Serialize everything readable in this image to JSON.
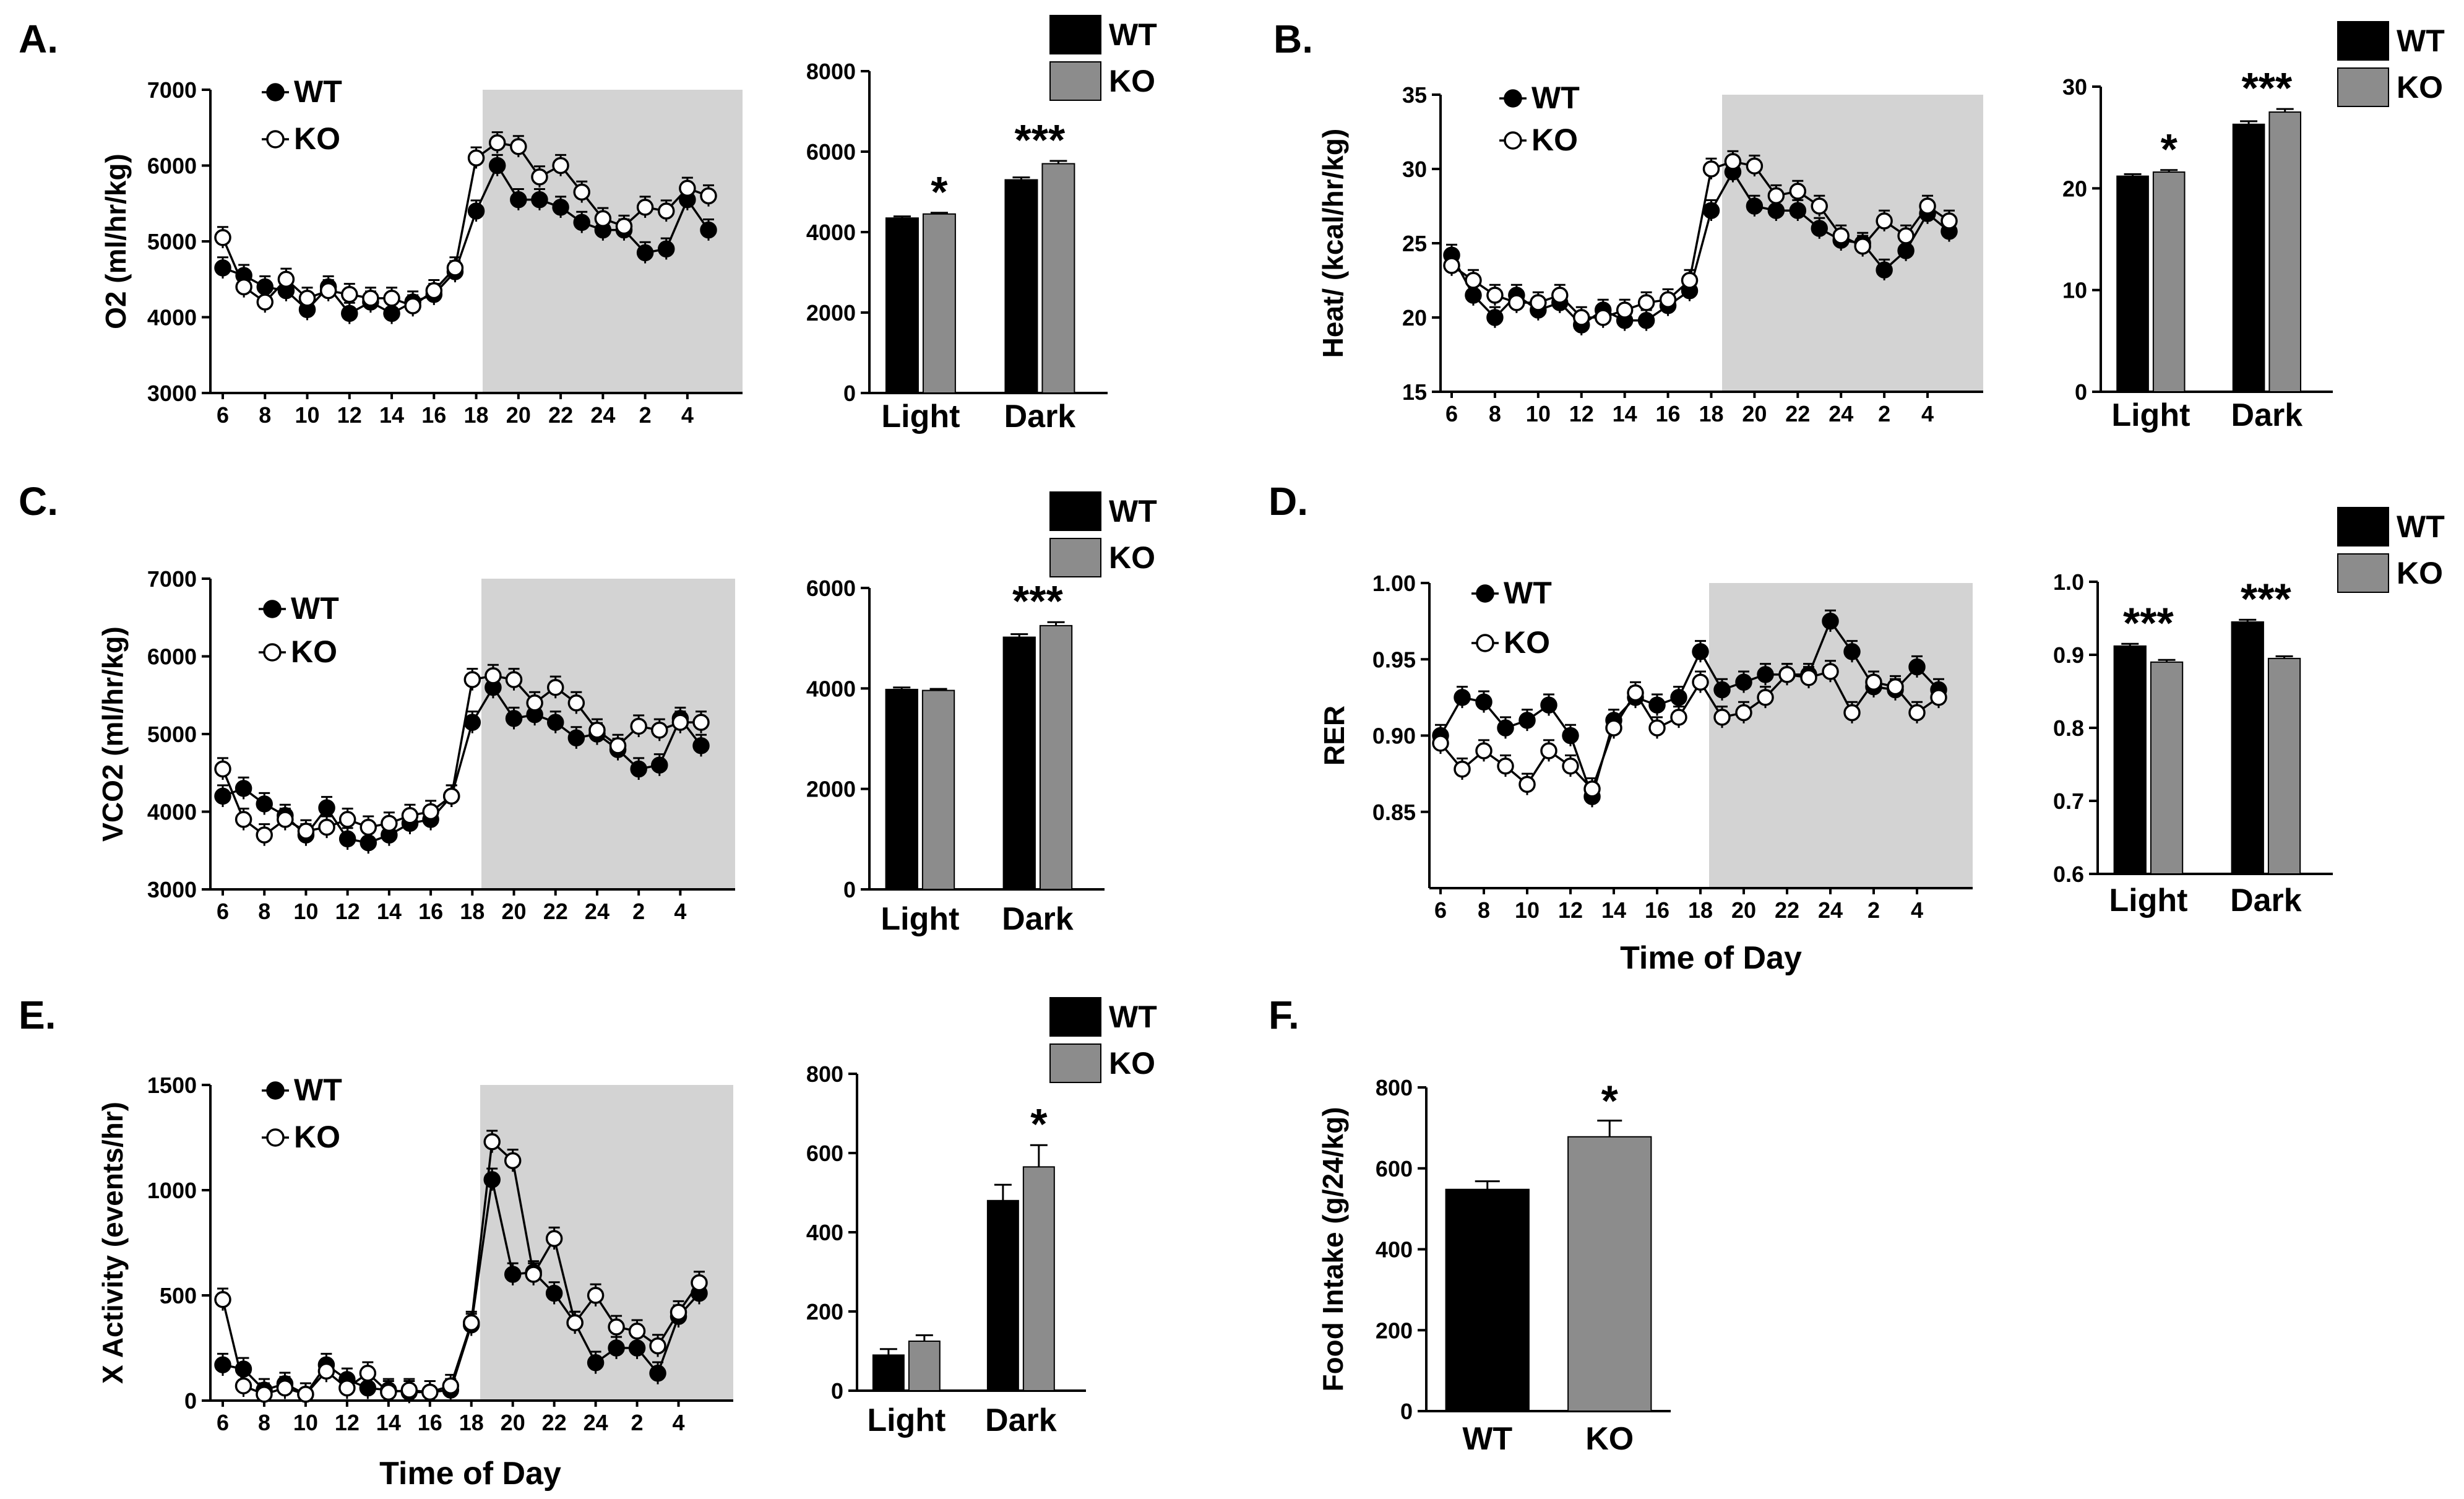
{
  "figure": {
    "fill_wt": "#000000",
    "fill_ko": "#8c8c8c",
    "shade": "#d3d3d3"
  },
  "chart_data": [
    {
      "id": "A-line",
      "panel": "A.",
      "type": "line",
      "ylabel": "O2 (ml/hr/kg)",
      "xlabel": "",
      "ylim": [
        3000,
        7000
      ],
      "yticks": [
        "3000",
        "4000",
        "5000",
        "6000",
        "7000"
      ],
      "xticks": [
        "6",
        "8",
        "10",
        "12",
        "14",
        "16",
        "18",
        "20",
        "22",
        "24",
        "2",
        "4"
      ],
      "x": [
        6,
        7,
        8,
        9,
        10,
        11,
        12,
        13,
        14,
        15,
        16,
        17,
        18,
        19,
        20,
        21,
        22,
        23,
        24,
        25,
        26,
        27,
        28,
        29
      ],
      "shade_x": [
        17.5,
        29.5
      ],
      "legend": [
        "WT",
        "KO"
      ],
      "series": [
        {
          "name": "WT",
          "values": [
            4650,
            4550,
            4400,
            4350,
            4100,
            4400,
            4050,
            4200,
            4050,
            4200,
            4300,
            4600,
            5400,
            6000,
            5550,
            5550,
            5450,
            5250,
            5150,
            5150,
            4850,
            4900,
            5550,
            5150
          ]
        },
        {
          "name": "KO",
          "values": [
            5050,
            4400,
            4200,
            4500,
            4250,
            4350,
            4300,
            4250,
            4250,
            4150,
            4350,
            4650,
            6100,
            6300,
            6250,
            5850,
            6000,
            5650,
            5300,
            5200,
            5450,
            5400,
            5700,
            5600
          ]
        }
      ]
    },
    {
      "id": "A-bar",
      "type": "bar",
      "ylim": [
        0,
        8000
      ],
      "yticks": [
        "0",
        "2000",
        "4000",
        "6000",
        "8000"
      ],
      "categories": [
        "Light",
        "Dark"
      ],
      "legend": [
        "WT",
        "KO"
      ],
      "sig": [
        "*",
        "***"
      ],
      "series": [
        {
          "name": "WT",
          "values": [
            4350,
            5300
          ],
          "err": [
            40,
            60
          ]
        },
        {
          "name": "KO",
          "values": [
            4450,
            5700
          ],
          "err": [
            30,
            70
          ]
        }
      ]
    },
    {
      "id": "B-line",
      "panel": "B.",
      "type": "line",
      "ylabel": "Heat/ (kcal/hr/kg)",
      "xlabel": "",
      "ylim": [
        15,
        35
      ],
      "yticks": [
        "15",
        "20",
        "25",
        "30",
        "35"
      ],
      "xticks": [
        "6",
        "8",
        "10",
        "12",
        "14",
        "16",
        "18",
        "20",
        "22",
        "24",
        "2",
        "4"
      ],
      "x": [
        6,
        7,
        8,
        9,
        10,
        11,
        12,
        13,
        14,
        15,
        16,
        17,
        18,
        19,
        20,
        21,
        22,
        23,
        24,
        25,
        26,
        27,
        28,
        29
      ],
      "shade_x": [
        17.5,
        29.5
      ],
      "legend": [
        "WT",
        "KO"
      ],
      "series": [
        {
          "name": "WT",
          "values": [
            24.2,
            21.5,
            20.0,
            21.5,
            20.5,
            21.0,
            19.5,
            20.5,
            19.8,
            19.8,
            20.8,
            21.8,
            27.2,
            29.8,
            27.5,
            27.2,
            27.2,
            26.0,
            25.2,
            25.0,
            23.2,
            24.5,
            27.0,
            25.8
          ]
        },
        {
          "name": "KO",
          "values": [
            23.5,
            22.5,
            21.5,
            21.0,
            21.0,
            21.5,
            20.0,
            20.0,
            20.5,
            21.0,
            21.2,
            22.5,
            30.0,
            30.5,
            30.2,
            28.2,
            28.5,
            27.5,
            25.5,
            24.8,
            26.5,
            25.5,
            27.5,
            26.5
          ]
        }
      ]
    },
    {
      "id": "B-bar",
      "type": "bar",
      "ylim": [
        0,
        30
      ],
      "yticks": [
        "0",
        "10",
        "20",
        "30"
      ],
      "categories": [
        "Light",
        "Dark"
      ],
      "legend": [
        "WT",
        "KO"
      ],
      "sig": [
        "*",
        "***"
      ],
      "series": [
        {
          "name": "WT",
          "values": [
            21.2,
            26.3
          ],
          "err": [
            0.2,
            0.3
          ]
        },
        {
          "name": "KO",
          "values": [
            21.6,
            27.5
          ],
          "err": [
            0.2,
            0.3
          ]
        }
      ]
    },
    {
      "id": "C-line",
      "panel": "C.",
      "type": "line",
      "ylabel": "VCO2 (ml/hr/kg)",
      "xlabel": "",
      "ylim": [
        3000,
        7000
      ],
      "yticks": [
        "3000",
        "4000",
        "5000",
        "6000",
        "7000"
      ],
      "xticks": [
        "6",
        "8",
        "10",
        "12",
        "14",
        "16",
        "18",
        "20",
        "22",
        "24",
        "2",
        "4"
      ],
      "x": [
        6,
        7,
        8,
        9,
        10,
        11,
        12,
        13,
        14,
        15,
        16,
        17,
        18,
        19,
        20,
        21,
        22,
        23,
        24,
        25,
        26,
        27,
        28,
        29
      ],
      "shade_x": [
        17.5,
        29.5
      ],
      "legend": [
        "WT",
        "KO"
      ],
      "series": [
        {
          "name": "WT",
          "values": [
            4200,
            4300,
            4100,
            3950,
            3700,
            4050,
            3650,
            3600,
            3700,
            3850,
            3900,
            4200,
            5150,
            5600,
            5200,
            5250,
            5150,
            4950,
            5000,
            4800,
            4550,
            4600,
            5200,
            4850
          ]
        },
        {
          "name": "KO",
          "values": [
            4550,
            3900,
            3700,
            3900,
            3750,
            3800,
            3900,
            3800,
            3850,
            3950,
            4000,
            4200,
            5700,
            5750,
            5700,
            5400,
            5600,
            5400,
            5050,
            4850,
            5100,
            5050,
            5150,
            5150
          ]
        }
      ]
    },
    {
      "id": "C-bar",
      "type": "bar",
      "ylim": [
        0,
        6000
      ],
      "yticks": [
        "0",
        "2000",
        "4000",
        "6000"
      ],
      "categories": [
        "Light",
        "Dark"
      ],
      "legend": [
        "WT",
        "KO"
      ],
      "sig": [
        "",
        "***"
      ],
      "series": [
        {
          "name": "WT",
          "values": [
            3980,
            5020
          ],
          "err": [
            40,
            60
          ]
        },
        {
          "name": "KO",
          "values": [
            3960,
            5250
          ],
          "err": [
            30,
            70
          ]
        }
      ]
    },
    {
      "id": "D-line",
      "panel": "D.",
      "type": "line",
      "ylabel": "RER",
      "xlabel": "Time of Day",
      "ylim": [
        0.8,
        1.0
      ],
      "yticks": [
        "0.85",
        "0.90",
        "0.95",
        "1.00"
      ],
      "ytick_values": [
        0.85,
        0.9,
        0.95,
        1.0
      ],
      "xticks": [
        "6",
        "8",
        "10",
        "12",
        "14",
        "16",
        "18",
        "20",
        "22",
        "24",
        "2",
        "4"
      ],
      "x": [
        6,
        7,
        8,
        9,
        10,
        11,
        12,
        13,
        14,
        15,
        16,
        17,
        18,
        19,
        20,
        21,
        22,
        23,
        24,
        25,
        26,
        27,
        28,
        29
      ],
      "shade_x": [
        17.5,
        29.5
      ],
      "legend": [
        "WT",
        "KO"
      ],
      "series": [
        {
          "name": "WT",
          "values": [
            0.9,
            0.925,
            0.922,
            0.905,
            0.91,
            0.92,
            0.9,
            0.86,
            0.91,
            0.925,
            0.92,
            0.925,
            0.955,
            0.93,
            0.935,
            0.94,
            0.94,
            0.94,
            0.975,
            0.955,
            0.932,
            0.93,
            0.945,
            0.93
          ]
        },
        {
          "name": "KO",
          "values": [
            0.895,
            0.878,
            0.89,
            0.88,
            0.868,
            0.89,
            0.88,
            0.865,
            0.905,
            0.928,
            0.905,
            0.912,
            0.935,
            0.912,
            0.915,
            0.925,
            0.94,
            0.938,
            0.942,
            0.915,
            0.935,
            0.932,
            0.915,
            0.925
          ]
        }
      ]
    },
    {
      "id": "D-bar",
      "type": "bar",
      "ylim": [
        0.6,
        1.0
      ],
      "yticks": [
        "0.6",
        "0.7",
        "0.8",
        "0.9",
        "1.0"
      ],
      "ytick_values": [
        0.6,
        0.7,
        0.8,
        0.9,
        1.0
      ],
      "categories": [
        "Light",
        "Dark"
      ],
      "legend": [
        "WT",
        "KO"
      ],
      "sig": [
        "***",
        "***"
      ],
      "series": [
        {
          "name": "WT",
          "values": [
            0.912,
            0.945
          ],
          "err": [
            0.003,
            0.003
          ]
        },
        {
          "name": "KO",
          "values": [
            0.89,
            0.895
          ],
          "err": [
            0.003,
            0.003
          ]
        }
      ]
    },
    {
      "id": "E-line",
      "panel": "E.",
      "type": "line",
      "ylabel": "X Activity (events/hr)",
      "xlabel": "Time of Day",
      "ylim": [
        0,
        1500
      ],
      "yticks": [
        "0",
        "500",
        "1000",
        "1500"
      ],
      "xticks": [
        "6",
        "8",
        "10",
        "12",
        "14",
        "16",
        "18",
        "20",
        "22",
        "24",
        "2",
        "4"
      ],
      "x": [
        6,
        7,
        8,
        9,
        10,
        11,
        12,
        13,
        14,
        15,
        16,
        17,
        18,
        19,
        20,
        21,
        22,
        23,
        24,
        25,
        26,
        27,
        28,
        29
      ],
      "shade_x": [
        17.5,
        29.5
      ],
      "legend": [
        "WT",
        "KO"
      ],
      "series": [
        {
          "name": "WT",
          "values": [
            170,
            150,
            50,
            80,
            30,
            170,
            100,
            60,
            50,
            40,
            40,
            50,
            360,
            1050,
            600,
            610,
            510,
            370,
            180,
            250,
            250,
            130,
            400,
            510
          ]
        },
        {
          "name": "KO",
          "values": [
            480,
            70,
            30,
            60,
            30,
            140,
            60,
            130,
            40,
            50,
            40,
            70,
            370,
            1230,
            1140,
            600,
            770,
            370,
            500,
            350,
            330,
            260,
            420,
            560
          ]
        }
      ]
    },
    {
      "id": "E-bar",
      "type": "bar",
      "ylim": [
        0,
        800
      ],
      "yticks": [
        "0",
        "200",
        "400",
        "600",
        "800"
      ],
      "categories": [
        "Light",
        "Dark"
      ],
      "legend": [
        "WT",
        "KO"
      ],
      "sig": [
        "",
        "*"
      ],
      "series": [
        {
          "name": "WT",
          "values": [
            90,
            480
          ],
          "err": [
            15,
            40
          ]
        },
        {
          "name": "KO",
          "values": [
            125,
            565
          ],
          "err": [
            15,
            55
          ]
        }
      ]
    },
    {
      "id": "F-bar",
      "panel": "F.",
      "type": "bar",
      "ylabel": "Food Intake (g/24/kg)",
      "ylim": [
        0,
        800
      ],
      "yticks": [
        "0",
        "200",
        "400",
        "600",
        "800"
      ],
      "categories": [
        "WT",
        "KO"
      ],
      "sig": [
        "",
        "*"
      ],
      "series": [
        {
          "name": "Food intake",
          "values": [
            548,
            678
          ],
          "err": [
            20,
            40
          ]
        }
      ]
    }
  ]
}
